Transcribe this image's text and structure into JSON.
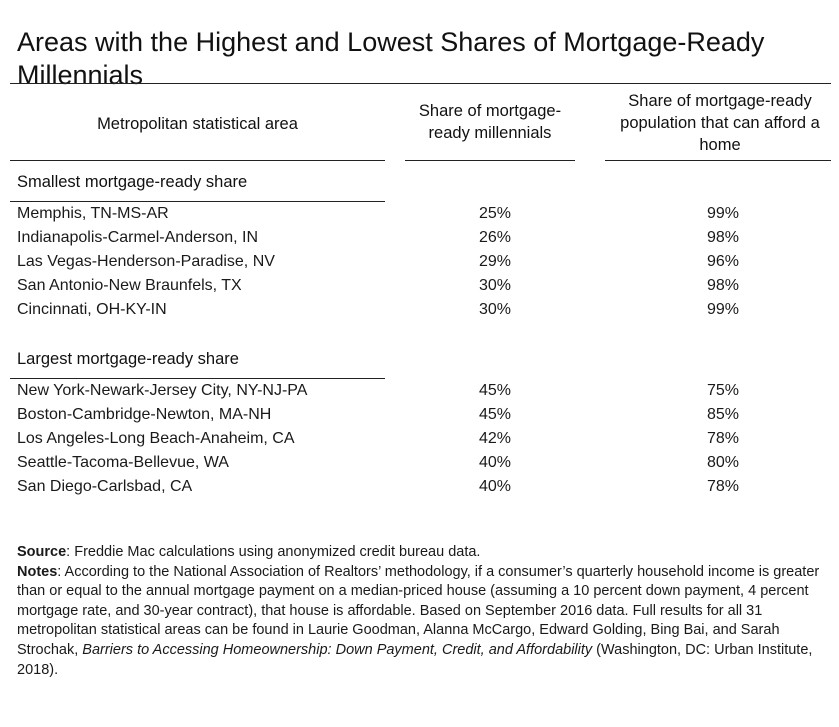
{
  "title": "Areas with the Highest and Lowest Shares of Mortgage-Ready Millennials",
  "headers": {
    "area": "Metropolitan statistical area",
    "share": "Share of mortgage-ready millennials",
    "afford": "Share of mortgage-ready population that can afford a home"
  },
  "sections": [
    {
      "title": "Smallest mortgage-ready share",
      "rows": [
        {
          "area": "Memphis, TN-MS-AR",
          "share": "25%",
          "afford": "99%"
        },
        {
          "area": "Indianapolis-Carmel-Anderson, IN",
          "share": "26%",
          "afford": "98%"
        },
        {
          "area": "Las Vegas-Henderson-Paradise, NV",
          "share": "29%",
          "afford": "96%"
        },
        {
          "area": "San Antonio-New Braunfels, TX",
          "share": "30%",
          "afford": "98%"
        },
        {
          "area": "Cincinnati, OH-KY-IN",
          "share": "30%",
          "afford": "99%"
        }
      ]
    },
    {
      "title": "Largest mortgage-ready share",
      "rows": [
        {
          "area": "New York-Newark-Jersey City, NY-NJ-PA",
          "share": "45%",
          "afford": "75%"
        },
        {
          "area": "Boston-Cambridge-Newton, MA-NH",
          "share": "45%",
          "afford": "85%"
        },
        {
          "area": "Los Angeles-Long Beach-Anaheim, CA",
          "share": "42%",
          "afford": "78%"
        },
        {
          "area": "Seattle-Tacoma-Bellevue, WA",
          "share": "40%",
          "afford": "80%"
        },
        {
          "area": "San Diego-Carlsbad, CA",
          "share": "40%",
          "afford": "78%"
        }
      ]
    }
  ],
  "source": {
    "label": "Source",
    "text": ": Freddie Mac calculations using anonymized credit bureau data."
  },
  "notes": {
    "label": "Notes",
    "text": ": According to the National Association of Realtors’ methodology, if a consumer’s quarterly household income is greater than or equal to the annual mortgage payment on a median-priced house (assuming a 10 percent down payment, 4 percent mortgage rate, and 30-year contract), that house is affordable. Based on September 2016 data. Full results for all 31 metropolitan statistical areas can be found in Laurie Goodman, Alanna McCargo, Edward Golding, Bing Bai, and Sarah Strochak, ",
    "book_title": "Barriers to Accessing Homeownership: Down Payment, Credit, and Affordability",
    "text_end": " (Washington, DC: Urban Institute, 2018)."
  }
}
